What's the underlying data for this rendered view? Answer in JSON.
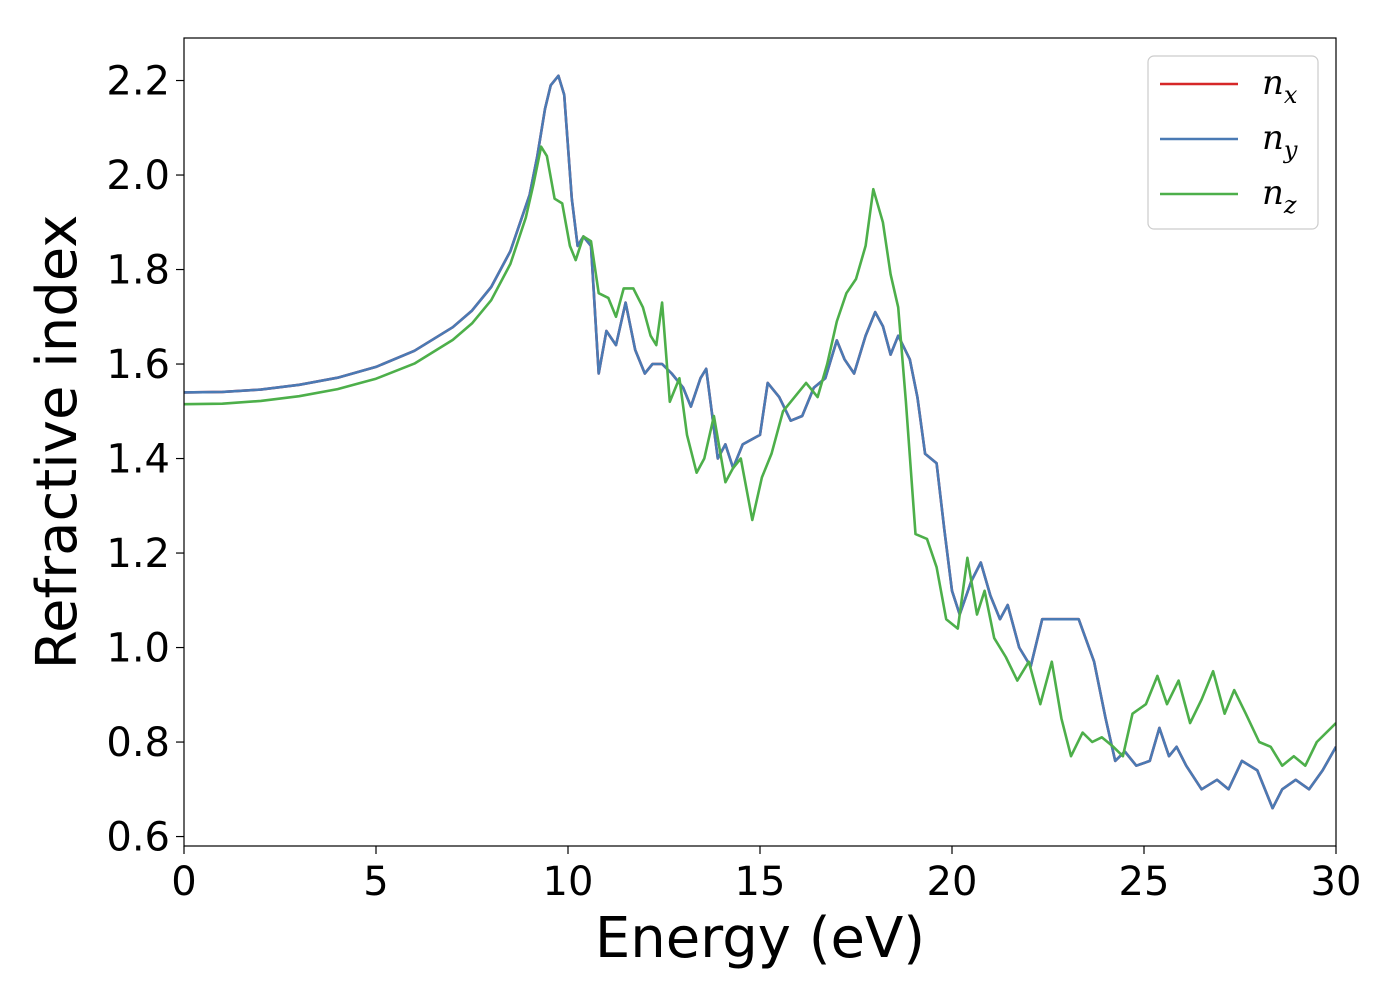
{
  "chart_data": {
    "type": "line",
    "xlabel": "Energy (eV)",
    "ylabel": "Refractive index",
    "xlim": [
      0,
      30
    ],
    "ylim": [
      0.58,
      2.29
    ],
    "xticks": [
      0,
      5,
      10,
      15,
      20,
      25,
      30
    ],
    "yticks": [
      0.6,
      0.8,
      1.0,
      1.2,
      1.4,
      1.6,
      1.8,
      2.0,
      2.2
    ],
    "xtick_labels": [
      "0",
      "5",
      "10",
      "15",
      "20",
      "25",
      "30"
    ],
    "ytick_labels": [
      "0.6",
      "0.8",
      "1.0",
      "1.2",
      "1.4",
      "1.6",
      "1.8",
      "2.0",
      "2.2"
    ],
    "grid": false,
    "legend_position": "top-right",
    "series": [
      {
        "name": "n",
        "subscript": "x",
        "color": "#d62728",
        "points": [
          [
            0,
            1.54
          ],
          [
            1,
            1.541
          ],
          [
            2,
            1.546
          ],
          [
            3,
            1.556
          ],
          [
            4,
            1.571
          ],
          [
            5,
            1.594
          ],
          [
            6,
            1.628
          ],
          [
            7,
            1.678
          ],
          [
            7.5,
            1.713
          ],
          [
            8,
            1.763
          ],
          [
            8.5,
            1.839
          ],
          [
            9,
            1.958
          ],
          [
            9.2,
            2.04
          ],
          [
            9.4,
            2.14
          ],
          [
            9.55,
            2.19
          ],
          [
            9.75,
            2.21
          ],
          [
            9.9,
            2.17
          ],
          [
            10.1,
            1.95
          ],
          [
            10.25,
            1.85
          ],
          [
            10.4,
            1.87
          ],
          [
            10.6,
            1.85
          ],
          [
            10.8,
            1.58
          ],
          [
            11,
            1.67
          ],
          [
            11.25,
            1.64
          ],
          [
            11.5,
            1.73
          ],
          [
            11.75,
            1.63
          ],
          [
            12,
            1.58
          ],
          [
            12.2,
            1.6
          ],
          [
            12.45,
            1.6
          ],
          [
            12.7,
            1.58
          ],
          [
            13,
            1.55
          ],
          [
            13.2,
            1.51
          ],
          [
            13.45,
            1.57
          ],
          [
            13.6,
            1.59
          ],
          [
            13.9,
            1.4
          ],
          [
            14.1,
            1.43
          ],
          [
            14.3,
            1.38
          ],
          [
            14.55,
            1.43
          ],
          [
            15,
            1.45
          ],
          [
            15.2,
            1.56
          ],
          [
            15.5,
            1.53
          ],
          [
            15.8,
            1.48
          ],
          [
            16.1,
            1.49
          ],
          [
            16.4,
            1.55
          ],
          [
            16.7,
            1.57
          ],
          [
            17,
            1.65
          ],
          [
            17.2,
            1.61
          ],
          [
            17.45,
            1.58
          ],
          [
            17.75,
            1.66
          ],
          [
            18,
            1.71
          ],
          [
            18.2,
            1.68
          ],
          [
            18.4,
            1.62
          ],
          [
            18.6,
            1.66
          ],
          [
            18.9,
            1.61
          ],
          [
            19.1,
            1.53
          ],
          [
            19.3,
            1.41
          ],
          [
            19.6,
            1.39
          ],
          [
            19.8,
            1.25
          ],
          [
            20,
            1.12
          ],
          [
            20.2,
            1.07
          ],
          [
            20.5,
            1.14
          ],
          [
            20.75,
            1.18
          ],
          [
            21,
            1.11
          ],
          [
            21.25,
            1.06
          ],
          [
            21.45,
            1.09
          ],
          [
            21.75,
            1.0
          ],
          [
            22.05,
            0.96
          ],
          [
            22.35,
            1.06
          ],
          [
            22.8,
            1.06
          ],
          [
            23.3,
            1.06
          ],
          [
            23.7,
            0.97
          ],
          [
            24,
            0.85
          ],
          [
            24.25,
            0.76
          ],
          [
            24.5,
            0.78
          ],
          [
            24.8,
            0.75
          ],
          [
            25.15,
            0.76
          ],
          [
            25.4,
            0.83
          ],
          [
            25.65,
            0.77
          ],
          [
            25.85,
            0.79
          ],
          [
            26.1,
            0.75
          ],
          [
            26.5,
            0.7
          ],
          [
            26.9,
            0.72
          ],
          [
            27.2,
            0.7
          ],
          [
            27.55,
            0.76
          ],
          [
            27.95,
            0.74
          ],
          [
            28.35,
            0.66
          ],
          [
            28.6,
            0.7
          ],
          [
            28.95,
            0.72
          ],
          [
            29.3,
            0.7
          ],
          [
            29.65,
            0.74
          ],
          [
            30,
            0.79
          ]
        ]
      },
      {
        "name": "n",
        "subscript": "y",
        "color": "#4a7ab4",
        "points": [
          [
            0,
            1.54
          ],
          [
            1,
            1.541
          ],
          [
            2,
            1.546
          ],
          [
            3,
            1.556
          ],
          [
            4,
            1.571
          ],
          [
            5,
            1.594
          ],
          [
            6,
            1.628
          ],
          [
            7,
            1.678
          ],
          [
            7.5,
            1.713
          ],
          [
            8,
            1.763
          ],
          [
            8.5,
            1.839
          ],
          [
            9,
            1.958
          ],
          [
            9.2,
            2.04
          ],
          [
            9.4,
            2.14
          ],
          [
            9.55,
            2.19
          ],
          [
            9.75,
            2.21
          ],
          [
            9.9,
            2.17
          ],
          [
            10.1,
            1.95
          ],
          [
            10.25,
            1.85
          ],
          [
            10.4,
            1.87
          ],
          [
            10.6,
            1.85
          ],
          [
            10.8,
            1.58
          ],
          [
            11,
            1.67
          ],
          [
            11.25,
            1.64
          ],
          [
            11.5,
            1.73
          ],
          [
            11.75,
            1.63
          ],
          [
            12,
            1.58
          ],
          [
            12.2,
            1.6
          ],
          [
            12.45,
            1.6
          ],
          [
            12.7,
            1.58
          ],
          [
            13,
            1.55
          ],
          [
            13.2,
            1.51
          ],
          [
            13.45,
            1.57
          ],
          [
            13.6,
            1.59
          ],
          [
            13.9,
            1.4
          ],
          [
            14.1,
            1.43
          ],
          [
            14.3,
            1.38
          ],
          [
            14.55,
            1.43
          ],
          [
            15,
            1.45
          ],
          [
            15.2,
            1.56
          ],
          [
            15.5,
            1.53
          ],
          [
            15.8,
            1.48
          ],
          [
            16.1,
            1.49
          ],
          [
            16.4,
            1.55
          ],
          [
            16.7,
            1.57
          ],
          [
            17,
            1.65
          ],
          [
            17.2,
            1.61
          ],
          [
            17.45,
            1.58
          ],
          [
            17.75,
            1.66
          ],
          [
            18,
            1.71
          ],
          [
            18.2,
            1.68
          ],
          [
            18.4,
            1.62
          ],
          [
            18.6,
            1.66
          ],
          [
            18.9,
            1.61
          ],
          [
            19.1,
            1.53
          ],
          [
            19.3,
            1.41
          ],
          [
            19.6,
            1.39
          ],
          [
            19.8,
            1.25
          ],
          [
            20,
            1.12
          ],
          [
            20.2,
            1.07
          ],
          [
            20.5,
            1.14
          ],
          [
            20.75,
            1.18
          ],
          [
            21,
            1.11
          ],
          [
            21.25,
            1.06
          ],
          [
            21.45,
            1.09
          ],
          [
            21.75,
            1.0
          ],
          [
            22.05,
            0.96
          ],
          [
            22.35,
            1.06
          ],
          [
            22.8,
            1.06
          ],
          [
            23.3,
            1.06
          ],
          [
            23.7,
            0.97
          ],
          [
            24,
            0.85
          ],
          [
            24.25,
            0.76
          ],
          [
            24.5,
            0.78
          ],
          [
            24.8,
            0.75
          ],
          [
            25.15,
            0.76
          ],
          [
            25.4,
            0.83
          ],
          [
            25.65,
            0.77
          ],
          [
            25.85,
            0.79
          ],
          [
            26.1,
            0.75
          ],
          [
            26.5,
            0.7
          ],
          [
            26.9,
            0.72
          ],
          [
            27.2,
            0.7
          ],
          [
            27.55,
            0.76
          ],
          [
            27.95,
            0.74
          ],
          [
            28.35,
            0.66
          ],
          [
            28.6,
            0.7
          ],
          [
            28.95,
            0.72
          ],
          [
            29.3,
            0.7
          ],
          [
            29.65,
            0.74
          ],
          [
            30,
            0.79
          ]
        ]
      },
      {
        "name": "n",
        "subscript": "z",
        "color": "#4daf4a",
        "points": [
          [
            0,
            1.515
          ],
          [
            1,
            1.516
          ],
          [
            2,
            1.522
          ],
          [
            3,
            1.532
          ],
          [
            4,
            1.547
          ],
          [
            5,
            1.569
          ],
          [
            6,
            1.601
          ],
          [
            7,
            1.651
          ],
          [
            7.5,
            1.686
          ],
          [
            8,
            1.735
          ],
          [
            8.5,
            1.812
          ],
          [
            8.9,
            1.91
          ],
          [
            9.1,
            1.98
          ],
          [
            9.3,
            2.06
          ],
          [
            9.45,
            2.04
          ],
          [
            9.65,
            1.95
          ],
          [
            9.85,
            1.94
          ],
          [
            10.05,
            1.85
          ],
          [
            10.2,
            1.82
          ],
          [
            10.4,
            1.87
          ],
          [
            10.6,
            1.86
          ],
          [
            10.8,
            1.75
          ],
          [
            11.05,
            1.74
          ],
          [
            11.25,
            1.7
          ],
          [
            11.45,
            1.76
          ],
          [
            11.7,
            1.76
          ],
          [
            11.95,
            1.72
          ],
          [
            12.15,
            1.66
          ],
          [
            12.3,
            1.64
          ],
          [
            12.45,
            1.73
          ],
          [
            12.65,
            1.52
          ],
          [
            12.9,
            1.57
          ],
          [
            13.1,
            1.45
          ],
          [
            13.35,
            1.37
          ],
          [
            13.55,
            1.4
          ],
          [
            13.8,
            1.49
          ],
          [
            14.1,
            1.35
          ],
          [
            14.3,
            1.38
          ],
          [
            14.5,
            1.4
          ],
          [
            14.8,
            1.27
          ],
          [
            15.05,
            1.36
          ],
          [
            15.3,
            1.41
          ],
          [
            15.6,
            1.5
          ],
          [
            15.9,
            1.53
          ],
          [
            16.2,
            1.56
          ],
          [
            16.5,
            1.53
          ],
          [
            16.75,
            1.6
          ],
          [
            17,
            1.69
          ],
          [
            17.25,
            1.75
          ],
          [
            17.5,
            1.78
          ],
          [
            17.75,
            1.85
          ],
          [
            17.95,
            1.97
          ],
          [
            18.2,
            1.9
          ],
          [
            18.4,
            1.79
          ],
          [
            18.6,
            1.72
          ],
          [
            18.8,
            1.52
          ],
          [
            19.05,
            1.24
          ],
          [
            19.35,
            1.23
          ],
          [
            19.6,
            1.17
          ],
          [
            19.85,
            1.06
          ],
          [
            20.15,
            1.04
          ],
          [
            20.4,
            1.19
          ],
          [
            20.65,
            1.07
          ],
          [
            20.85,
            1.12
          ],
          [
            21.1,
            1.02
          ],
          [
            21.4,
            0.98
          ],
          [
            21.7,
            0.93
          ],
          [
            22,
            0.97
          ],
          [
            22.3,
            0.88
          ],
          [
            22.6,
            0.97
          ],
          [
            22.85,
            0.85
          ],
          [
            23.1,
            0.77
          ],
          [
            23.4,
            0.82
          ],
          [
            23.65,
            0.8
          ],
          [
            23.9,
            0.81
          ],
          [
            24.2,
            0.79
          ],
          [
            24.45,
            0.77
          ],
          [
            24.7,
            0.86
          ],
          [
            25.05,
            0.88
          ],
          [
            25.35,
            0.94
          ],
          [
            25.6,
            0.88
          ],
          [
            25.9,
            0.93
          ],
          [
            26.2,
            0.84
          ],
          [
            26.5,
            0.89
          ],
          [
            26.8,
            0.95
          ],
          [
            27.1,
            0.86
          ],
          [
            27.35,
            0.91
          ],
          [
            27.65,
            0.86
          ],
          [
            28,
            0.8
          ],
          [
            28.3,
            0.79
          ],
          [
            28.6,
            0.75
          ],
          [
            28.9,
            0.77
          ],
          [
            29.2,
            0.75
          ],
          [
            29.5,
            0.8
          ],
          [
            30,
            0.84
          ]
        ]
      }
    ]
  }
}
